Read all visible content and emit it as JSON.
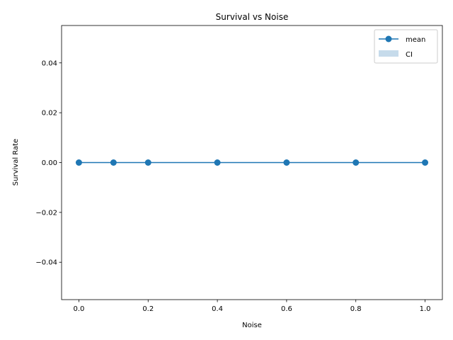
{
  "chart_data": {
    "type": "line",
    "title": "Survival vs Noise",
    "xlabel": "Noise",
    "ylabel": "Survival Rate",
    "x": [
      0.0,
      0.1,
      0.2,
      0.4,
      0.6,
      0.8,
      1.0
    ],
    "series": [
      {
        "name": "mean",
        "values": [
          0.0,
          0.0,
          0.0,
          0.0,
          0.0,
          0.0,
          0.0
        ],
        "color": "#1f77b4",
        "marker": "circle"
      }
    ],
    "ci_band": {
      "name": "CI",
      "lower": [
        0.0,
        0.0,
        0.0,
        0.0,
        0.0,
        0.0,
        0.0
      ],
      "upper": [
        0.0,
        0.0,
        0.0,
        0.0,
        0.0,
        0.0,
        0.0
      ],
      "color": "#c6dbeb"
    },
    "xlim": [
      -0.05,
      1.05
    ],
    "ylim": [
      -0.055,
      0.055
    ],
    "xticks": [
      0.0,
      0.2,
      0.4,
      0.6,
      0.8,
      1.0
    ],
    "xtick_labels": [
      "0.0",
      "0.2",
      "0.4",
      "0.6",
      "0.8",
      "1.0"
    ],
    "yticks": [
      -0.04,
      -0.02,
      0.0,
      0.02,
      0.04
    ],
    "ytick_labels": [
      "−0.04",
      "−0.02",
      "0.00",
      "0.02",
      "0.04"
    ],
    "grid": false,
    "legend_position": "top-right"
  }
}
